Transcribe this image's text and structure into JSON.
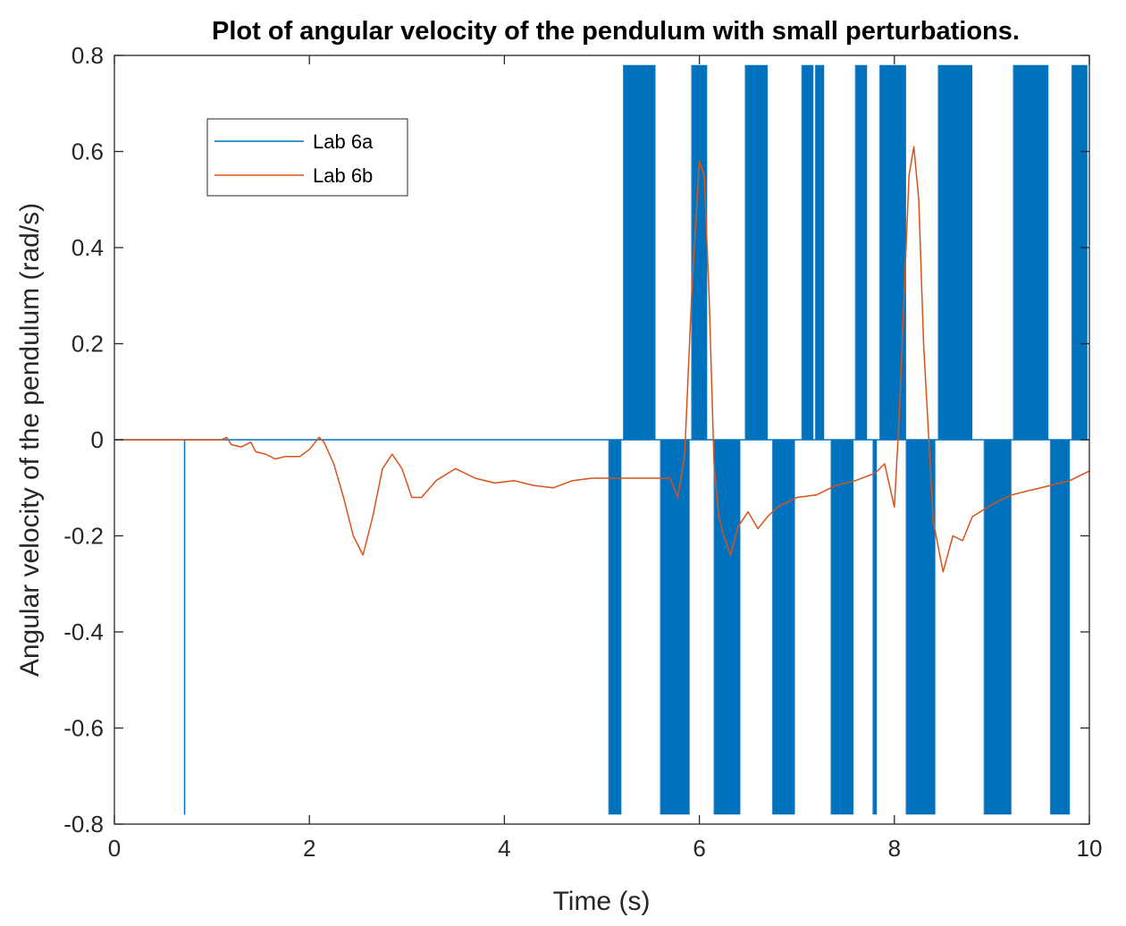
{
  "chart_data": {
    "type": "line",
    "title": "Plot of angular velocity of the pendulum with small perturbations.",
    "xlabel": "Time (s)",
    "ylabel": "Angular velocity of the pendulum (rad/s)",
    "xlim": [
      0,
      10
    ],
    "ylim": [
      -0.8,
      0.8
    ],
    "xticks": [
      0,
      2,
      4,
      6,
      8,
      10
    ],
    "xtick_labels": [
      "0",
      "2",
      "4",
      "6",
      "8",
      "10"
    ],
    "yticks": [
      -0.8,
      -0.6,
      -0.4,
      -0.2,
      0,
      0.2,
      0.4,
      0.6,
      0.8
    ],
    "ytick_labels": [
      "-0.8",
      "-0.6",
      "-0.4",
      "-0.2",
      "0",
      "0.2",
      "0.4",
      "0.6",
      "0.8"
    ],
    "grid": false,
    "legend_position": "top-left",
    "series": [
      {
        "name": "Lab 6a",
        "color": "#0072BD",
        "style": "bang-bang",
        "spikes": [
          {
            "x": 0.72,
            "y": -0.78
          }
        ],
        "bands": [
          {
            "x0": 5.07,
            "x1": 5.2,
            "y": -0.78
          },
          {
            "x0": 5.22,
            "x1": 5.55,
            "y": 0.78
          },
          {
            "x0": 5.6,
            "x1": 5.9,
            "y": -0.78
          },
          {
            "x0": 5.92,
            "x1": 6.08,
            "y": 0.78
          },
          {
            "x0": 6.15,
            "x1": 6.42,
            "y": -0.78
          },
          {
            "x0": 6.47,
            "x1": 6.7,
            "y": 0.78
          },
          {
            "x0": 6.75,
            "x1": 6.98,
            "y": -0.78
          },
          {
            "x0": 7.05,
            "x1": 7.17,
            "y": 0.78
          },
          {
            "x0": 7.19,
            "x1": 7.28,
            "y": 0.78
          },
          {
            "x0": 7.35,
            "x1": 7.58,
            "y": -0.78
          },
          {
            "x0": 7.6,
            "x1": 7.72,
            "y": 0.78
          },
          {
            "x0": 7.78,
            "x1": 7.82,
            "y": -0.78
          },
          {
            "x0": 7.85,
            "x1": 8.12,
            "y": 0.78
          },
          {
            "x0": 8.12,
            "x1": 8.42,
            "y": -0.78
          },
          {
            "x0": 8.45,
            "x1": 8.8,
            "y": 0.78
          },
          {
            "x0": 8.92,
            "x1": 9.2,
            "y": -0.78
          },
          {
            "x0": 9.22,
            "x1": 9.58,
            "y": 0.78
          },
          {
            "x0": 9.6,
            "x1": 9.8,
            "y": -0.78
          },
          {
            "x0": 9.82,
            "x1": 9.98,
            "y": 0.78
          }
        ]
      },
      {
        "name": "Lab 6b",
        "color": "#D95319",
        "style": "line",
        "x": [
          0,
          0.5,
          1.1,
          1.15,
          1.2,
          1.3,
          1.4,
          1.45,
          1.55,
          1.65,
          1.75,
          1.9,
          2.0,
          2.1,
          2.15,
          2.25,
          2.35,
          2.45,
          2.55,
          2.65,
          2.75,
          2.85,
          2.95,
          3.05,
          3.15,
          3.3,
          3.5,
          3.7,
          3.9,
          4.1,
          4.3,
          4.5,
          4.7,
          4.9,
          5.1,
          5.3,
          5.5,
          5.7,
          5.78,
          5.85,
          5.92,
          6.0,
          6.05,
          6.1,
          6.15,
          6.2,
          6.25,
          6.32,
          6.4,
          6.5,
          6.6,
          6.7,
          6.8,
          6.9,
          7.0,
          7.2,
          7.4,
          7.6,
          7.8,
          7.9,
          8.0,
          8.05,
          8.1,
          8.15,
          8.2,
          8.25,
          8.3,
          8.4,
          8.5,
          8.6,
          8.7,
          8.8,
          9.0,
          9.2,
          9.4,
          9.6,
          9.8,
          10.0
        ],
        "y": [
          0,
          0,
          0,
          0.005,
          -0.01,
          -0.015,
          -0.005,
          -0.025,
          -0.03,
          -0.04,
          -0.035,
          -0.035,
          -0.02,
          0.005,
          -0.005,
          -0.05,
          -0.12,
          -0.2,
          -0.24,
          -0.16,
          -0.06,
          -0.03,
          -0.06,
          -0.12,
          -0.12,
          -0.085,
          -0.06,
          -0.08,
          -0.09,
          -0.085,
          -0.095,
          -0.1,
          -0.085,
          -0.08,
          -0.08,
          -0.08,
          -0.08,
          -0.08,
          -0.12,
          -0.03,
          0.3,
          0.58,
          0.55,
          0.3,
          -0.05,
          -0.16,
          -0.2,
          -0.24,
          -0.18,
          -0.15,
          -0.185,
          -0.16,
          -0.14,
          -0.13,
          -0.12,
          -0.115,
          -0.095,
          -0.085,
          -0.07,
          -0.05,
          -0.14,
          0.05,
          0.3,
          0.55,
          0.61,
          0.5,
          0.2,
          -0.17,
          -0.275,
          -0.2,
          -0.21,
          -0.16,
          -0.135,
          -0.115,
          -0.105,
          -0.095,
          -0.085,
          -0.065
        ]
      }
    ]
  }
}
